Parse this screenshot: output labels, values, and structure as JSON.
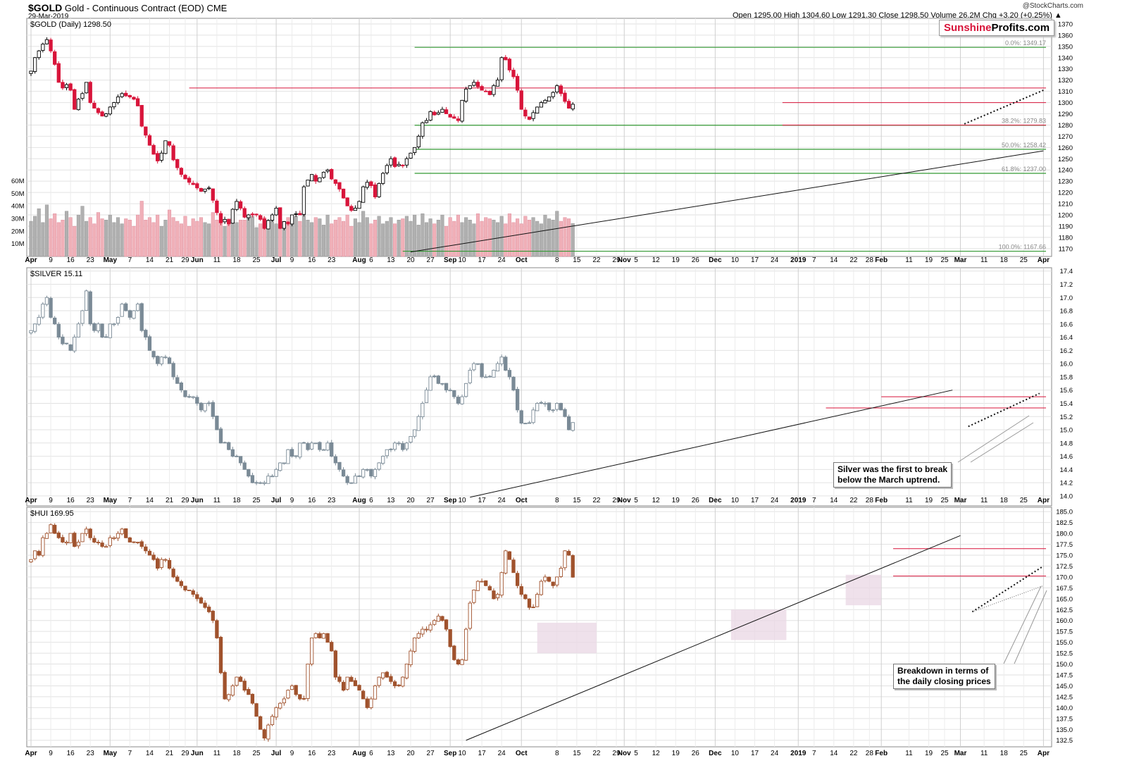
{
  "header": {
    "symbol": "$GOLD",
    "name": "Gold - Continuous Contract (EOD)",
    "exchange": "CME",
    "date": "29-Mar-2019",
    "ohlc": "Open 1295.00  High 1304.60  Low 1291.30  Close 1298.50  Volume 26.2M  Chg +3.20 (+0.25%) ▲",
    "source": "@StockCharts.com"
  },
  "watermark": {
    "part1": "Sunshine",
    "part2": "Profits.com"
  },
  "colors": {
    "up": "#ffffff",
    "down": "#d8143a",
    "silver": "#7a8a96",
    "hui": "#a0522d",
    "fib": "#339933",
    "resistance": "#d8143a",
    "vol_up": "#b0b0b0",
    "vol_down": "#f0b0b8"
  },
  "notes": {
    "silver": [
      "Silver was the first to break",
      "below the March uptrend."
    ],
    "hui": [
      "Breakdown in terms of",
      "the daily closing prices"
    ]
  },
  "chart_data": [
    {
      "type": "candlestick",
      "title": "$GOLD (Daily) 1298.50",
      "ylim": [
        1163,
        1375
      ],
      "ticks": [
        1170,
        1180,
        1190,
        1200,
        1210,
        1220,
        1230,
        1240,
        1250,
        1260,
        1270,
        1280,
        1290,
        1300,
        1310,
        1320,
        1330,
        1340,
        1350,
        1360,
        1370
      ],
      "closes": [
        1328,
        1340,
        1346,
        1352,
        1356,
        1346,
        1334,
        1318,
        1313,
        1316,
        1311,
        1294,
        1303,
        1308,
        1318,
        1300,
        1295,
        1291,
        1288,
        1290,
        1296,
        1300,
        1305,
        1308,
        1306,
        1305,
        1303,
        1297,
        1279,
        1271,
        1262,
        1254,
        1248,
        1255,
        1266,
        1262,
        1249,
        1242,
        1236,
        1232,
        1229,
        1227,
        1224,
        1221,
        1223,
        1224,
        1213,
        1202,
        1193,
        1196,
        1192,
        1205,
        1212,
        1206,
        1198,
        1200,
        1200,
        1200,
        1196,
        1188,
        1195,
        1200,
        1206,
        1188,
        1194,
        1192,
        1200,
        1201,
        1200,
        1225,
        1231,
        1236,
        1230,
        1233,
        1238,
        1240,
        1232,
        1228,
        1223,
        1215,
        1208,
        1204,
        1206,
        1212,
        1225,
        1229,
        1226,
        1216,
        1228,
        1237,
        1244,
        1250,
        1243,
        1245,
        1244,
        1250,
        1255,
        1260,
        1270,
        1282,
        1284,
        1292,
        1289,
        1291,
        1294,
        1290,
        1287,
        1286,
        1284,
        1302,
        1312,
        1315,
        1318,
        1314,
        1311,
        1310,
        1307,
        1315,
        1320,
        1340,
        1338,
        1329,
        1323,
        1311,
        1294,
        1288,
        1285,
        1291,
        1296,
        1300,
        1302,
        1305,
        1309,
        1315,
        1308,
        1301,
        1295,
        1298.5
      ],
      "volumes_m": [
        28,
        32,
        38,
        27,
        41,
        30,
        34,
        27,
        29,
        36,
        31,
        24,
        33,
        40,
        28,
        31,
        26,
        35,
        30,
        29,
        33,
        27,
        31,
        26,
        30,
        29,
        24,
        33,
        44,
        29,
        31,
        27,
        33,
        24,
        29,
        37,
        31,
        28,
        26,
        32,
        24,
        30,
        28,
        31,
        27,
        26,
        35,
        29,
        33,
        24,
        30,
        31,
        27,
        29,
        29,
        31,
        32,
        23,
        26,
        31,
        29,
        33,
        26,
        30,
        28,
        31,
        27,
        32,
        28,
        34,
        29,
        27,
        31,
        30,
        25,
        33,
        26,
        29,
        31,
        28,
        33,
        24,
        30,
        27,
        36,
        31,
        26,
        29,
        32,
        26,
        28,
        31,
        26,
        29,
        30,
        32,
        28,
        33,
        25,
        34,
        27,
        30,
        26,
        29,
        33,
        24,
        31,
        28,
        33,
        27,
        31,
        29,
        26,
        34,
        28,
        31,
        30,
        29,
        27,
        32,
        26,
        34,
        27,
        30,
        26,
        32,
        29,
        31,
        28,
        26,
        33,
        30,
        29,
        36,
        28,
        31,
        30,
        26.2
      ],
      "fibonacci": [
        {
          "label": "0.0%: 1349.17",
          "value": 1349.17
        },
        {
          "label": "38.2%: 1279.83",
          "value": 1279.83
        },
        {
          "label": "50.0%: 1258.42",
          "value": 1258.42
        },
        {
          "label": "61.8%: 1237.00",
          "value": 1237.0
        },
        {
          "label": "100.0%: 1167.66",
          "value": 1167.66
        }
      ],
      "resistance": [
        1313,
        1300,
        1280
      ],
      "volume_ticks": [
        "60M",
        "50M",
        "40M",
        "30M",
        "20M",
        "10M"
      ]
    },
    {
      "type": "candlestick",
      "title": "$SILVER 15.11",
      "ylim": [
        13.85,
        17.45
      ],
      "ticks": [
        14.0,
        14.2,
        14.4,
        14.6,
        14.8,
        15.0,
        15.2,
        15.4,
        15.6,
        15.8,
        16.0,
        16.2,
        16.4,
        16.6,
        16.8,
        17.0,
        17.2,
        17.4
      ],
      "closes": [
        16.5,
        16.6,
        16.7,
        16.9,
        17.0,
        16.7,
        16.6,
        16.4,
        16.3,
        16.3,
        16.2,
        16.4,
        16.6,
        16.8,
        17.1,
        16.6,
        16.5,
        16.6,
        16.4,
        16.4,
        16.6,
        16.6,
        16.7,
        16.9,
        16.8,
        16.7,
        16.8,
        16.9,
        16.5,
        16.4,
        16.2,
        16.1,
        16.0,
        16.1,
        16.1,
        16.0,
        15.8,
        15.7,
        15.6,
        15.5,
        15.5,
        15.5,
        15.4,
        15.3,
        15.4,
        15.4,
        15.2,
        15.0,
        14.8,
        14.8,
        14.7,
        14.6,
        14.6,
        14.5,
        14.4,
        14.3,
        14.2,
        14.2,
        14.2,
        14.2,
        14.3,
        14.3,
        14.4,
        14.5,
        14.5,
        14.7,
        14.6,
        14.6,
        14.8,
        14.8,
        14.7,
        14.8,
        14.8,
        14.7,
        14.7,
        14.8,
        14.6,
        14.5,
        14.4,
        14.3,
        14.2,
        14.2,
        14.3,
        14.3,
        14.4,
        14.4,
        14.3,
        14.4,
        14.5,
        14.6,
        14.7,
        14.7,
        14.8,
        14.8,
        14.7,
        14.8,
        14.9,
        15.0,
        15.2,
        15.4,
        15.6,
        15.8,
        15.8,
        15.7,
        15.7,
        15.6,
        15.6,
        15.5,
        15.4,
        15.5,
        15.7,
        15.9,
        16.0,
        16.0,
        15.8,
        15.8,
        15.8,
        15.9,
        16.0,
        16.1,
        15.9,
        15.8,
        15.6,
        15.3,
        15.1,
        15.1,
        15.1,
        15.3,
        15.4,
        15.4,
        15.4,
        15.3,
        15.3,
        15.4,
        15.3,
        15.2,
        15.0,
        15.11
      ],
      "resistance": [
        15.5,
        15.33
      ]
    },
    {
      "type": "candlestick",
      "title": "$HUI 169.95",
      "ylim": [
        131,
        186
      ],
      "ticks": [
        132.5,
        135.0,
        137.5,
        140.0,
        142.5,
        145.0,
        147.5,
        150.0,
        152.5,
        155.0,
        157.5,
        160.0,
        162.5,
        165.0,
        167.5,
        170.0,
        172.5,
        175.0,
        177.5,
        180.0,
        182.5,
        185.0
      ],
      "closes": [
        174,
        176,
        175,
        179,
        180,
        182,
        180,
        179,
        178,
        178,
        180,
        177,
        178,
        180,
        181,
        179,
        178,
        178,
        177,
        177,
        179,
        179,
        180,
        181,
        179,
        178,
        178,
        178,
        177,
        176,
        175,
        174,
        172,
        174,
        174,
        172,
        170,
        169,
        168,
        167,
        167,
        166,
        165,
        164,
        163,
        162,
        160,
        156,
        148,
        142,
        143,
        145,
        147,
        146,
        144,
        143,
        141,
        138,
        135,
        133,
        136,
        138,
        140,
        141,
        142,
        144,
        145,
        143,
        142,
        142,
        150,
        156,
        157,
        156,
        157,
        155,
        153,
        147,
        146,
        144,
        147,
        146,
        145,
        144,
        142,
        140,
        142,
        145,
        147,
        148,
        147,
        146,
        145,
        145,
        147,
        150,
        153,
        156,
        157,
        158,
        158,
        159,
        160,
        161,
        160,
        158,
        154,
        151,
        150,
        151,
        158,
        164,
        167,
        169,
        169,
        168,
        167,
        165,
        166,
        171,
        176,
        174,
        171,
        168,
        166,
        165,
        163,
        163,
        166,
        169,
        170,
        169,
        168,
        170,
        172,
        176,
        175,
        169.95
      ],
      "resistance": [
        176.5,
        170.2
      ],
      "highlight_zones": 3
    }
  ],
  "x_axis": {
    "labels": [
      {
        "text": "Apr",
        "i": 0,
        "bold": true
      },
      {
        "text": "9",
        "i": 5
      },
      {
        "text": "16",
        "i": 10
      },
      {
        "text": "23",
        "i": 15
      },
      {
        "text": "May",
        "i": 20,
        "bold": true
      },
      {
        "text": "7",
        "i": 25
      },
      {
        "text": "14",
        "i": 30
      },
      {
        "text": "21",
        "i": 35
      },
      {
        "text": "29",
        "i": 39
      },
      {
        "text": "Jun",
        "i": 42,
        "bold": true
      },
      {
        "text": "11",
        "i": 47
      },
      {
        "text": "18",
        "i": 52
      },
      {
        "text": "25",
        "i": 57
      },
      {
        "text": "Jul",
        "i": 62,
        "bold": true
      },
      {
        "text": "9",
        "i": 66
      },
      {
        "text": "16",
        "i": 71
      },
      {
        "text": "23",
        "i": 76
      },
      {
        "text": "Aug",
        "i": 83,
        "bold": true
      },
      {
        "text": "6",
        "i": 86
      },
      {
        "text": "13",
        "i": 91
      },
      {
        "text": "20",
        "i": 96
      },
      {
        "text": "27",
        "i": 101
      },
      {
        "text": "Sep",
        "i": 106,
        "bold": true
      },
      {
        "text": "10",
        "i": 109
      },
      {
        "text": "17",
        "i": 114
      },
      {
        "text": "24",
        "i": 119
      },
      {
        "text": "Oct",
        "i": 124,
        "bold": true
      },
      {
        "text": "8",
        "i": 133
      },
      {
        "text": "15",
        "i": 138
      },
      {
        "text": "22",
        "i": 143
      },
      {
        "text": "29",
        "i": 148
      },
      {
        "text": "Nov",
        "i": 150,
        "bold": true
      },
      {
        "text": "5",
        "i": 153
      },
      {
        "text": "12",
        "i": 158
      },
      {
        "text": "19",
        "i": 163
      },
      {
        "text": "26",
        "i": 168
      },
      {
        "text": "Dec",
        "i": 173,
        "bold": true
      },
      {
        "text": "10",
        "i": 178
      },
      {
        "text": "17",
        "i": 183
      },
      {
        "text": "24",
        "i": 188
      },
      {
        "text": "2019",
        "i": 194,
        "bold": true
      },
      {
        "text": "7",
        "i": 198
      },
      {
        "text": "14",
        "i": 203
      },
      {
        "text": "22",
        "i": 208
      },
      {
        "text": "28",
        "i": 212
      },
      {
        "text": "Feb",
        "i": 215,
        "bold": true
      },
      {
        "text": "11",
        "i": 222
      },
      {
        "text": "19",
        "i": 227
      },
      {
        "text": "25",
        "i": 231
      },
      {
        "text": "Mar",
        "i": 235,
        "bold": true
      },
      {
        "text": "11",
        "i": 241
      },
      {
        "text": "18",
        "i": 246
      },
      {
        "text": "25",
        "i": 251
      },
      {
        "text": "Apr",
        "i": 256,
        "bold": true
      }
    ],
    "total_days": 258
  }
}
